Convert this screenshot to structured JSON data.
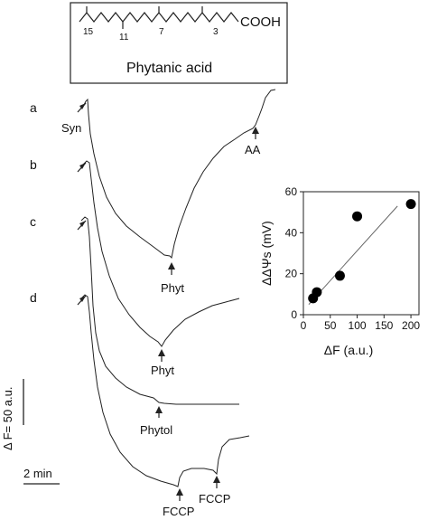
{
  "structure_box": {
    "locants": [
      "15",
      "11",
      "7",
      "3"
    ],
    "functional_group": "COOH",
    "compound_name": "Phytanic acid"
  },
  "traces": [
    {
      "label": "a",
      "start_annotation": "Syn",
      "markers": [
        {
          "label": "Phyt",
          "kind": "arrow-up"
        },
        {
          "label": "AA",
          "kind": "arrow-up"
        }
      ]
    },
    {
      "label": "b",
      "markers": []
    },
    {
      "label": "c",
      "markers": [
        {
          "label": "Phyt",
          "kind": "arrow-up"
        }
      ]
    },
    {
      "label": "d",
      "markers": [
        {
          "label": "Phytol",
          "kind": "arrow-up"
        },
        {
          "label": "FCCP",
          "kind": "arrow-up"
        },
        {
          "label": "FCCP",
          "kind": "arrow-up"
        }
      ]
    }
  ],
  "scale_bars": {
    "vertical": "Δ F= 50 a.u.",
    "horizontal": "2 min"
  },
  "chart_data": {
    "type": "scatter",
    "xlabel": "ΔF (a.u.)",
    "ylabel": "ΔΔΨs (mV)",
    "xlim": [
      0,
      215
    ],
    "ylim": [
      0,
      60
    ],
    "x_ticks": [
      0,
      50,
      100,
      150,
      200
    ],
    "y_ticks": [
      0,
      20,
      40,
      60
    ],
    "points": [
      {
        "x": 18,
        "y": 8
      },
      {
        "x": 25,
        "y": 11
      },
      {
        "x": 68,
        "y": 19
      },
      {
        "x": 100,
        "y": 48
      },
      {
        "x": 200,
        "y": 54
      }
    ],
    "fit_line": {
      "x": [
        10,
        175
      ],
      "y": [
        5,
        53
      ]
    },
    "grid": false,
    "colors": {
      "points": "#000000",
      "fit_line": "#666666"
    }
  }
}
